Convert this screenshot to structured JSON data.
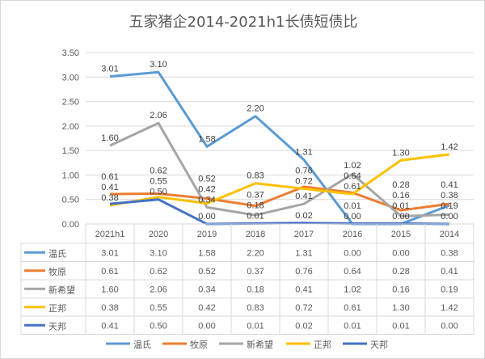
{
  "chart_data": {
    "type": "line",
    "title": "五家猪企2014-2021h1长债短债比",
    "categories": [
      "2021h1",
      "2020",
      "2019",
      "2018",
      "2017",
      "2016",
      "2015",
      "2014"
    ],
    "ylim": [
      0,
      3.5
    ],
    "yticks": [
      "0.00",
      "0.50",
      "1.00",
      "1.50",
      "2.00",
      "2.50",
      "3.00",
      "3.50"
    ],
    "grid": true,
    "legend": "bottom",
    "data_table": true,
    "series": [
      {
        "name": "温氏",
        "color": "#5b9bd5",
        "values": [
          3.01,
          3.1,
          1.58,
          2.2,
          1.31,
          0.0,
          0.0,
          0.38
        ]
      },
      {
        "name": "牧原",
        "color": "#ed7d31",
        "values": [
          0.61,
          0.62,
          0.52,
          0.37,
          0.76,
          0.64,
          0.28,
          0.41
        ]
      },
      {
        "name": "新希望",
        "color": "#a5a5a5",
        "values": [
          1.6,
          2.06,
          0.34,
          0.18,
          0.41,
          1.02,
          0.16,
          0.19
        ]
      },
      {
        "name": "正邦",
        "color": "#ffc000",
        "values": [
          0.38,
          0.55,
          0.42,
          0.83,
          0.72,
          0.61,
          1.3,
          1.42
        ]
      },
      {
        "name": "天邦",
        "color": "#4472c4",
        "values": [
          0.41,
          0.5,
          0.0,
          0.01,
          0.02,
          0.01,
          0.01,
          0.0
        ]
      }
    ]
  }
}
